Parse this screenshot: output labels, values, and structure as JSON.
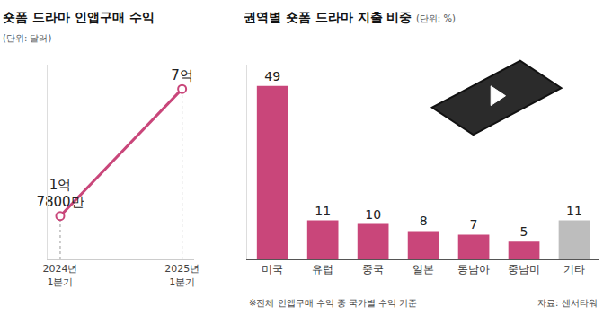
{
  "chart_data": [
    {
      "type": "line",
      "title": "숏폼 드라마 인앱구매 수익",
      "subtitle": "(단위: 달러)",
      "categories": [
        "2024년 1분기",
        "2025년 1분기"
      ],
      "values": [
        178000000,
        700000000
      ],
      "value_labels": [
        "1억 7800만",
        "7억"
      ],
      "data_labels": true,
      "color": "#c9467a",
      "marker": "circle",
      "ylim": [
        0,
        800000000
      ],
      "yticks": [
        0
      ],
      "tick_labels": "x",
      "grid": false
    },
    {
      "type": "bar",
      "title": "권역별 숏폼 드라마 지출 비중",
      "subtitle": "(단위: %)",
      "categories": [
        "미국",
        "유럽",
        "중국",
        "일본",
        "동남아",
        "중남미",
        "기타"
      ],
      "values": [
        49,
        11,
        10,
        8,
        7,
        5,
        11
      ],
      "colors": [
        "#c9467a",
        "#c9467a",
        "#c9467a",
        "#c9467a",
        "#c9467a",
        "#c9467a",
        "#bdbdbd"
      ],
      "data_labels": true,
      "ylim": [
        0,
        55
      ],
      "yticks": [
        0
      ],
      "tick_labels": "x",
      "grid": false,
      "note": "※전체 인앱구매 수익 중 국가별 수익 기준",
      "source": "자료: 센서타워"
    }
  ]
}
